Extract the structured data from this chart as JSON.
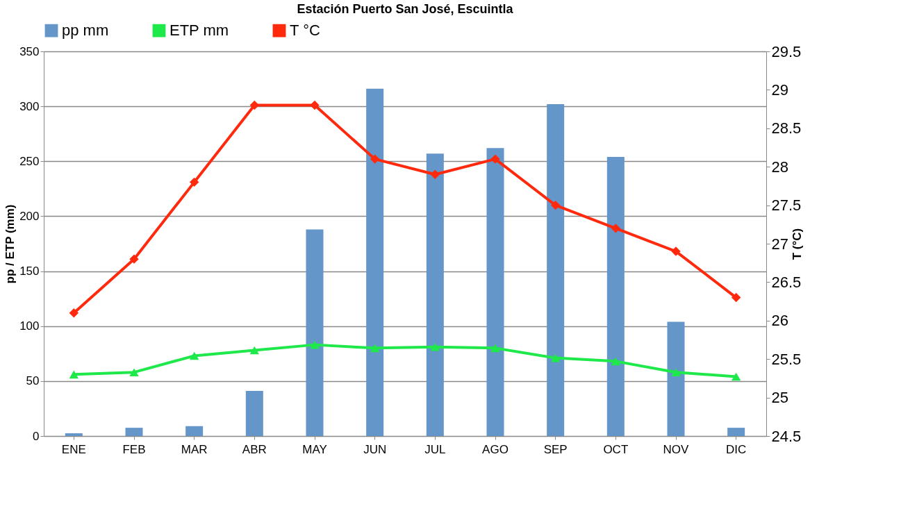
{
  "chart_data": {
    "type": "bar",
    "title": "Estación Puerto San José, Escuintla",
    "categories": [
      "ENE",
      "FEB",
      "MAR",
      "ABR",
      "MAY",
      "JUN",
      "JUL",
      "AGO",
      "SEP",
      "OCT",
      "NOV",
      "DIC"
    ],
    "ylabel": "pp / ETP (mm)",
    "y2label": "T (°C)",
    "ylim": [
      0,
      350
    ],
    "yticks": [
      0,
      50,
      100,
      150,
      200,
      250,
      300,
      350
    ],
    "y2lim": [
      24.5,
      29.5
    ],
    "y2ticks": [
      24.5,
      25,
      25.5,
      26,
      26.5,
      27,
      27.5,
      28,
      28.5,
      29,
      29.5
    ],
    "grid": "y",
    "legend": "top",
    "series": [
      {
        "name": "pp mm",
        "color": "#6596c9",
        "values": [
          2.5,
          7.5,
          9,
          41,
          188,
          316,
          257,
          262,
          302,
          254,
          104,
          7.5
        ]
      },
      {
        "name": "ETP mm",
        "type": "line",
        "color": "#1ee84a",
        "marker": "triangle",
        "values": [
          56,
          58,
          73,
          78,
          83,
          80,
          81,
          80,
          71,
          68,
          58,
          54
        ]
      },
      {
        "name": "T °C",
        "type": "line",
        "axis": "y2",
        "color": "#ff2a0d",
        "marker": "diamond",
        "values": [
          26.1,
          26.8,
          27.8,
          28.8,
          28.8,
          28.1,
          27.9,
          28.1,
          27.5,
          27.2,
          26.9,
          26.3
        ]
      }
    ]
  }
}
